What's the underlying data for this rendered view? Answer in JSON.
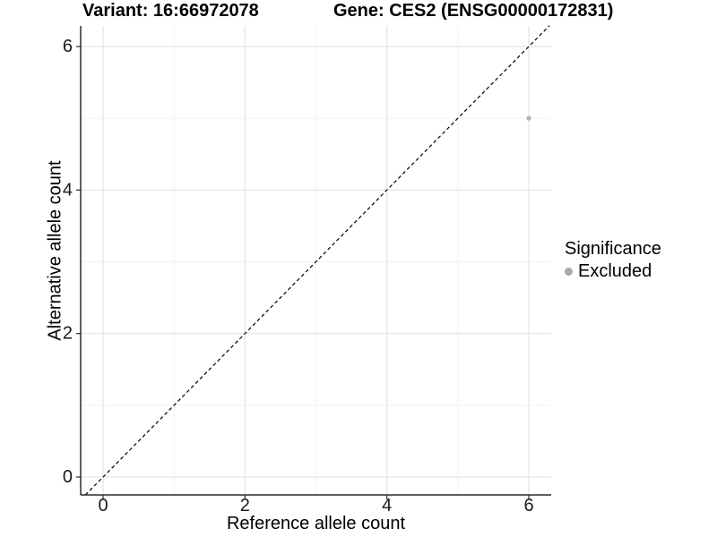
{
  "header": {
    "variant_title": "Variant: 16:66972078",
    "gene_title": "Gene: CES2 (ENSG00000172831)"
  },
  "chart_data": {
    "type": "scatter",
    "xlabel": "Reference allele count",
    "ylabel": "Alternative allele count",
    "xlim": [
      -0.32,
      6.32
    ],
    "ylim": [
      -0.25,
      6.29
    ],
    "xticks": [
      0,
      2,
      4,
      6
    ],
    "yticks": [
      0,
      2,
      4,
      6
    ],
    "grid": {
      "major": [
        0,
        2,
        4,
        6
      ],
      "minor": [
        1,
        3,
        5
      ],
      "visible": true
    },
    "reference_line": {
      "type": "identity",
      "equation": "y = x",
      "style": "dashed",
      "color": "#000000"
    },
    "series": [
      {
        "name": "Excluded",
        "color": "#b3b3b3",
        "points": [
          {
            "x": 6,
            "y": 5
          }
        ]
      }
    ],
    "legend": {
      "title": "Significance",
      "position": "right",
      "entries": [
        {
          "label": "Excluded",
          "color": "#a9a9a9"
        }
      ]
    }
  },
  "colors": {
    "background": "#ffffff",
    "grid_major": "#e6e6e6",
    "grid_minor": "#f2f2f2",
    "axis_line": "#2b2b2b",
    "tick_text": "#1a1a1a",
    "title_text": "#000000"
  }
}
